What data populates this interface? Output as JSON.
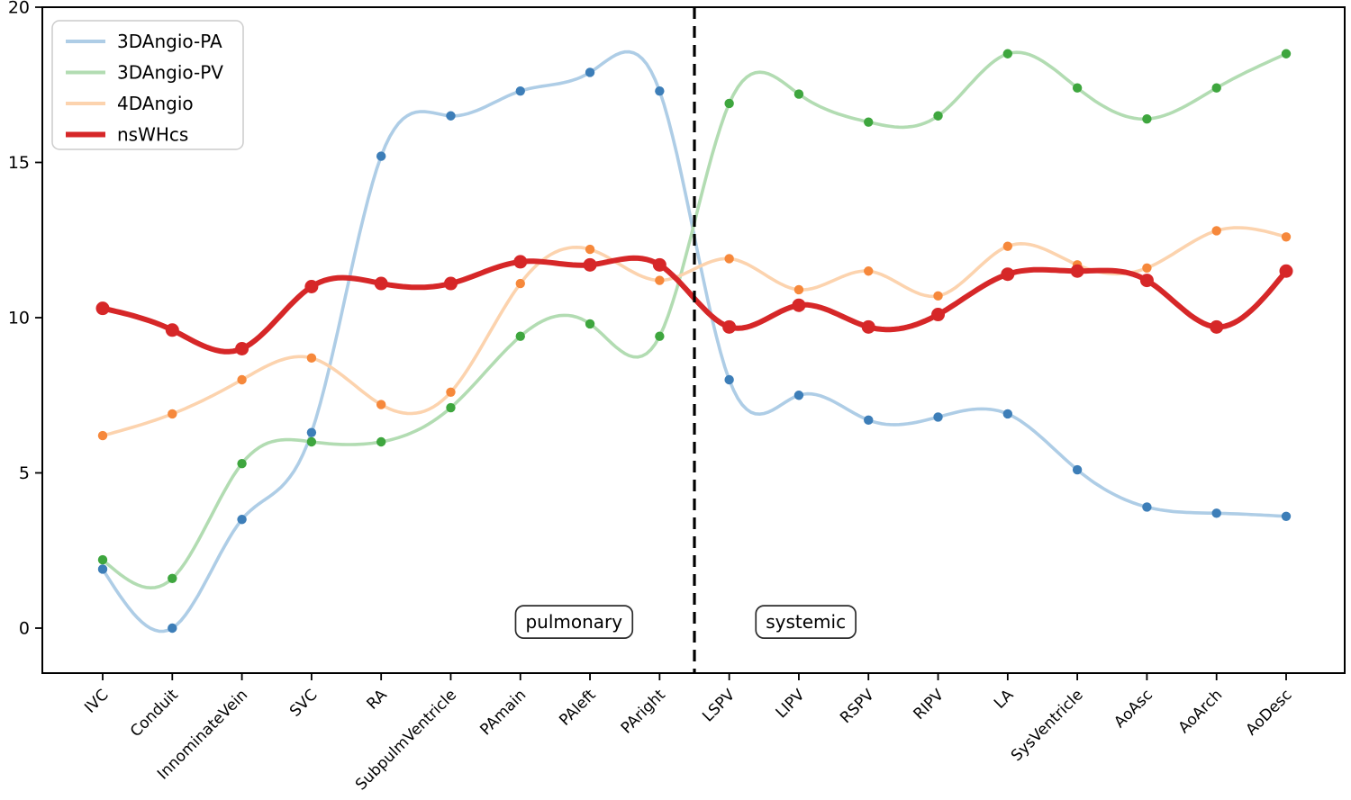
{
  "figure": {
    "background": "#ffffff",
    "title": ""
  },
  "chart_data": {
    "type": "line",
    "title": "",
    "xlabel": "",
    "ylabel": "",
    "grid": false,
    "legend_position": "upper-left",
    "ylim": [
      -1.45,
      20
    ],
    "yticks": [
      0,
      5,
      10,
      15,
      20
    ],
    "categories": [
      "IVC",
      "Conduit",
      "InnominateVein",
      "SVC",
      "RA",
      "SubpulmVentricle",
      "PAmain",
      "PAleft",
      "PAright",
      "LSPV",
      "LIPV",
      "RSPV",
      "RIPV",
      "LA",
      "SysVentricle",
      "AoAsc",
      "AoArch",
      "AoDesc"
    ],
    "series": [
      {
        "name": "3DAngio-PA",
        "values": [
          1.9,
          0.0,
          3.5,
          6.3,
          15.2,
          16.5,
          17.3,
          17.9,
          17.3,
          8.0,
          7.5,
          6.7,
          6.8,
          6.9,
          5.1,
          3.9,
          3.7,
          3.6
        ],
        "line_color": "#aecde6",
        "marker_color": "#3d7eb8",
        "line_width": 3.6,
        "marker_radius": 5.2
      },
      {
        "name": "3DAngio-PV",
        "values": [
          2.2,
          1.6,
          5.3,
          6.0,
          6.0,
          7.1,
          9.4,
          9.8,
          9.4,
          16.9,
          17.2,
          16.3,
          16.5,
          18.5,
          17.4,
          16.4,
          17.4,
          18.5
        ],
        "line_color": "#b2dcb2",
        "marker_color": "#3ea63e",
        "line_width": 3.6,
        "marker_radius": 5.2
      },
      {
        "name": "4DAngio",
        "values": [
          6.2,
          6.9,
          8.0,
          8.7,
          7.2,
          7.6,
          11.1,
          12.2,
          11.2,
          11.9,
          10.9,
          11.5,
          10.7,
          12.3,
          11.7,
          11.6,
          12.8,
          12.6
        ],
        "line_color": "#fcd3ae",
        "marker_color": "#f6883b",
        "line_width": 3.6,
        "marker_radius": 5.2
      },
      {
        "name": "nsWHcs",
        "values": [
          10.3,
          9.6,
          9.0,
          11.0,
          11.1,
          11.1,
          11.8,
          11.7,
          11.7,
          9.7,
          10.4,
          9.7,
          10.1,
          11.4,
          11.5,
          11.2,
          9.7,
          11.5
        ],
        "line_color": "#d62728",
        "marker_color": "#d62728",
        "line_width": 6,
        "marker_radius": 7.5
      }
    ],
    "divider": {
      "x_index": 8.5,
      "style": "dashed",
      "color": "#000000"
    },
    "annotations": [
      {
        "label": "pulmonary",
        "x_index": 6.77,
        "y_value": 0.2
      },
      {
        "label": "systemic",
        "x_index": 10.1,
        "y_value": 0.2
      }
    ],
    "legend": {
      "entries": [
        "3DAngio-PA",
        "3DAngio-PV",
        "4DAngio",
        "nsWHcs"
      ]
    }
  }
}
